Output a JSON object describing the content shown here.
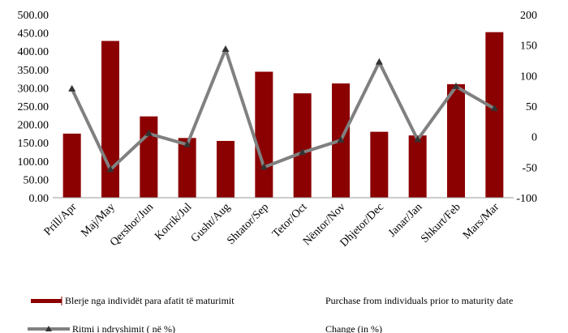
{
  "chart_data": {
    "type": "bar+line",
    "categories": [
      "Prill/Apr",
      "Maj/May",
      "Qershor/Jun",
      "Korrik/Jul",
      "Gusht/Aug",
      "Shtator/Sep",
      "Tetor/Oct",
      "Nëntor/Nov",
      "Dhjetor/Dec",
      "Janar/Jan",
      "Shkurt/Feb",
      "Mars/Mar"
    ],
    "series": [
      {
        "name": "Blerje nga individët para afatit të maturimit",
        "name_en": "Purchase from individuals prior to maturity date",
        "type": "bar",
        "axis": "left",
        "color": "#8b0000",
        "values": [
          175,
          428,
          222,
          163,
          155,
          344,
          285,
          312,
          180,
          170,
          310,
          452
        ]
      },
      {
        "name": "Ritmi i ndryshimit ( në %)",
        "name_en": "Change (in %)",
        "type": "line",
        "axis": "right",
        "color": "#808080",
        "values": [
          78,
          -54,
          5,
          -13,
          143,
          -50,
          -26,
          -6,
          122,
          -5,
          82,
          46
        ]
      }
    ],
    "y_left": {
      "min": 0,
      "max": 500,
      "step": 50,
      "ticks": [
        "0.00",
        "50.00",
        "100.00",
        "150.00",
        "200.00",
        "250.00",
        "300.00",
        "350.00",
        "400.00",
        "450.00",
        "500.00"
      ]
    },
    "y_right": {
      "min": -100,
      "max": 200,
      "step": 50,
      "ticks": [
        "-100",
        "-50",
        "0",
        "50",
        "100",
        "150",
        "200"
      ]
    },
    "grid": false,
    "legend_position": "bottom"
  }
}
